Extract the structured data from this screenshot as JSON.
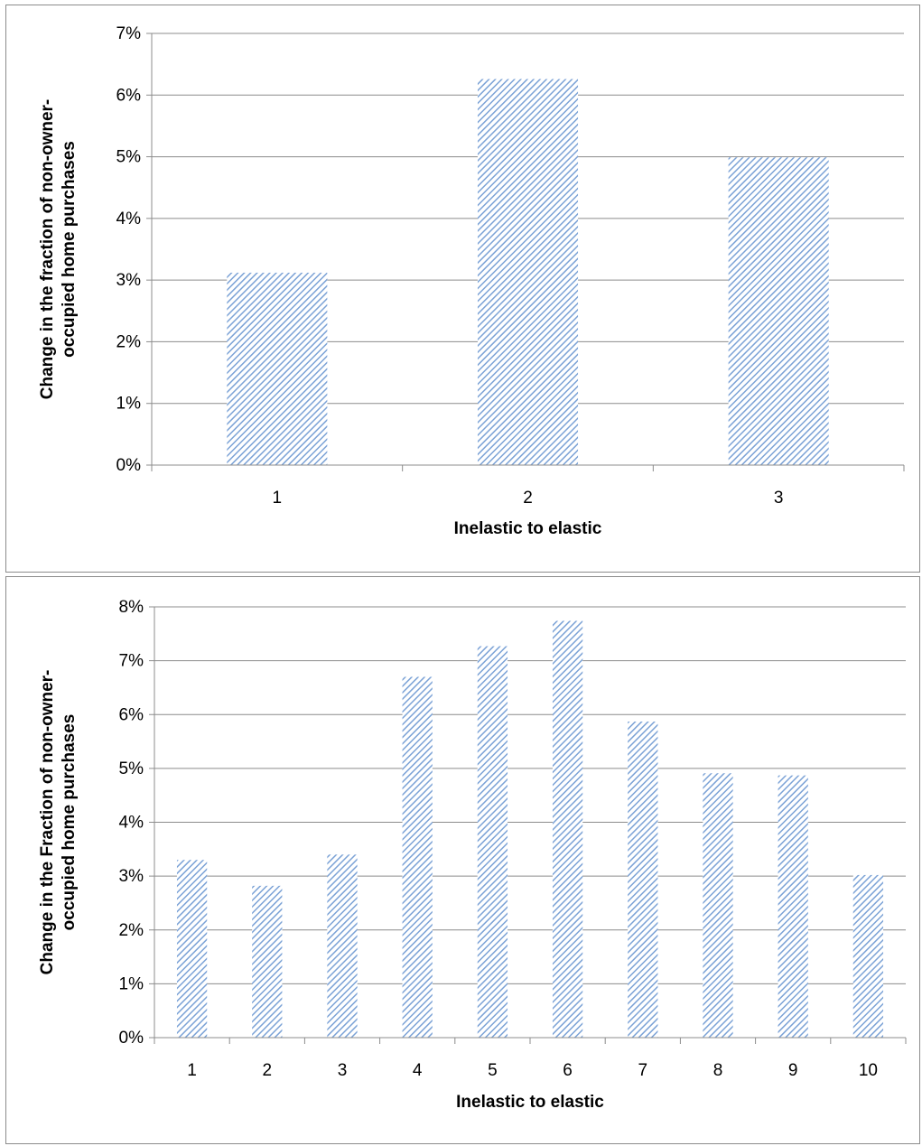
{
  "chart_data": [
    {
      "type": "bar",
      "title": "",
      "xlabel": "Inelastic to elastic",
      "ylabel": "Change in the fraction of non-owner-occupied home purchases",
      "ylabel_lines": [
        "Change in the fraction of non-owner-",
        "occupied home purchases"
      ],
      "categories": [
        "1",
        "2",
        "3"
      ],
      "values": [
        3.12,
        6.26,
        4.99
      ],
      "ylim": [
        0,
        7
      ],
      "yticks": [
        "0%",
        "1%",
        "2%",
        "3%",
        "4%",
        "5%",
        "6%",
        "7%"
      ],
      "grid": true,
      "legend": "none",
      "bar_color": "#7ba2d6",
      "bar_pattern": "diagonal-hatch"
    },
    {
      "type": "bar",
      "title": "",
      "xlabel": "Inelastic to elastic",
      "ylabel": "Change in the Fraction of  non-owner-occupied home purchases",
      "ylabel_lines": [
        "Change in the Fraction of  non-owner-",
        "occupied home purchases"
      ],
      "categories": [
        "1",
        "2",
        "3",
        "4",
        "5",
        "6",
        "7",
        "8",
        "9",
        "10"
      ],
      "values": [
        3.3,
        2.82,
        3.4,
        6.7,
        7.27,
        7.74,
        5.87,
        4.91,
        4.87,
        3.02
      ],
      "ylim": [
        0,
        8
      ],
      "yticks": [
        "0%",
        "1%",
        "2%",
        "3%",
        "4%",
        "5%",
        "6%",
        "7%",
        "8%"
      ],
      "grid": true,
      "legend": "none",
      "bar_color": "#7ba2d6",
      "bar_pattern": "diagonal-hatch"
    }
  ]
}
